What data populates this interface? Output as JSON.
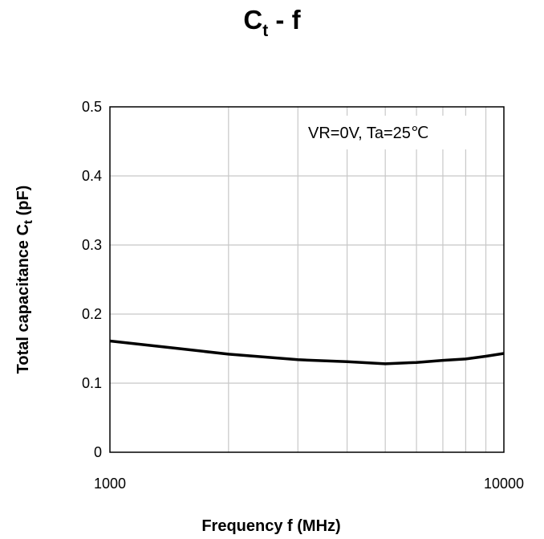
{
  "chart_data": {
    "type": "line",
    "title_main": "C",
    "title_sub": "t",
    "title_rest": " - f",
    "xlabel": "Frequency f (MHz)",
    "ylabel_main": "Total capacitance C",
    "ylabel_sub": "t",
    "ylabel_rest": " (pF)",
    "annotation": "VR=0V, Ta=25℃",
    "x_scale": "log",
    "xlim": [
      1000,
      10000
    ],
    "ylim": [
      0,
      0.5
    ],
    "x_ticks": [
      1000,
      10000
    ],
    "x_tick_labels": [
      "1000",
      "10000"
    ],
    "y_ticks": [
      0,
      0.1,
      0.2,
      0.3,
      0.4,
      0.5
    ],
    "y_tick_labels": [
      "0",
      "0.1",
      "0.2",
      "0.3",
      "0.4",
      "0.5"
    ],
    "grid": true,
    "line_color": "#000000",
    "grid_color": "#c8c8c8",
    "series": [
      {
        "x": [
          1000,
          1500,
          2000,
          3000,
          4000,
          5000,
          6000,
          7000,
          8000,
          9000,
          10000
        ],
        "y": [
          0.161,
          0.15,
          0.142,
          0.134,
          0.131,
          0.128,
          0.13,
          0.133,
          0.135,
          0.139,
          0.143
        ]
      }
    ]
  }
}
